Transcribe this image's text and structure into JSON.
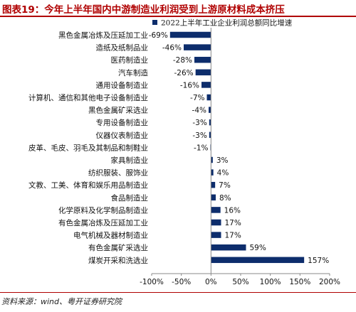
{
  "header": {
    "title": "图表19：今年上半年国内中游制造业利润受到上游原材料成本挤压"
  },
  "footer": {
    "source": "资料来源：wind、粤开证券研究院"
  },
  "colors": {
    "bar": "#0d2d6c",
    "accent": "#b00000",
    "axis": "#888888"
  },
  "chart_data": {
    "type": "bar",
    "orientation": "horizontal",
    "legend": {
      "label": "2022上半年工业企业利润总额同比增速",
      "position": "top"
    },
    "categories": [
      "黑色金属冶炼及压延加工业",
      "造纸及纸制品业",
      "医药制造业",
      "汽车制造",
      "通用设备制造业",
      "计算机、通信和其他电子设备制造业",
      "黑色金属矿采选业",
      "专用设备制造业",
      "仪器仪表制造业",
      "皮革、毛皮、羽毛及其制品和制鞋业",
      "家具制造业",
      "纺织服装、服饰业",
      "文教、工美、体育和娱乐用品制造业",
      "食品制造业",
      "化学原料及化学制品制造业",
      "有色金属冶炼及压延加工业",
      "电气机械及器材制造业",
      "有色金属矿采选业",
      "煤炭开采和洗选业"
    ],
    "values": [
      -69,
      -46,
      -28,
      -26,
      -16,
      -7,
      -4,
      -3,
      -3,
      -1,
      3,
      4,
      7,
      8,
      16,
      17,
      17,
      59,
      157
    ],
    "value_labels": [
      "-69%",
      "-46%",
      "-28%",
      "-26%",
      "-16%",
      "-7%",
      "-4%",
      "-3%",
      "-3%",
      "-1%",
      "3%",
      "4%",
      "7%",
      "8%",
      "16%",
      "17%",
      "17%",
      "59%",
      "157%"
    ],
    "xlim": [
      -100,
      200
    ],
    "xticks": [
      -100,
      -50,
      0,
      50,
      100,
      150,
      200
    ],
    "xtick_labels": [
      "-100%",
      "-50%",
      "0%",
      "50%",
      "100%",
      "150%",
      "200%"
    ],
    "grid": false
  }
}
